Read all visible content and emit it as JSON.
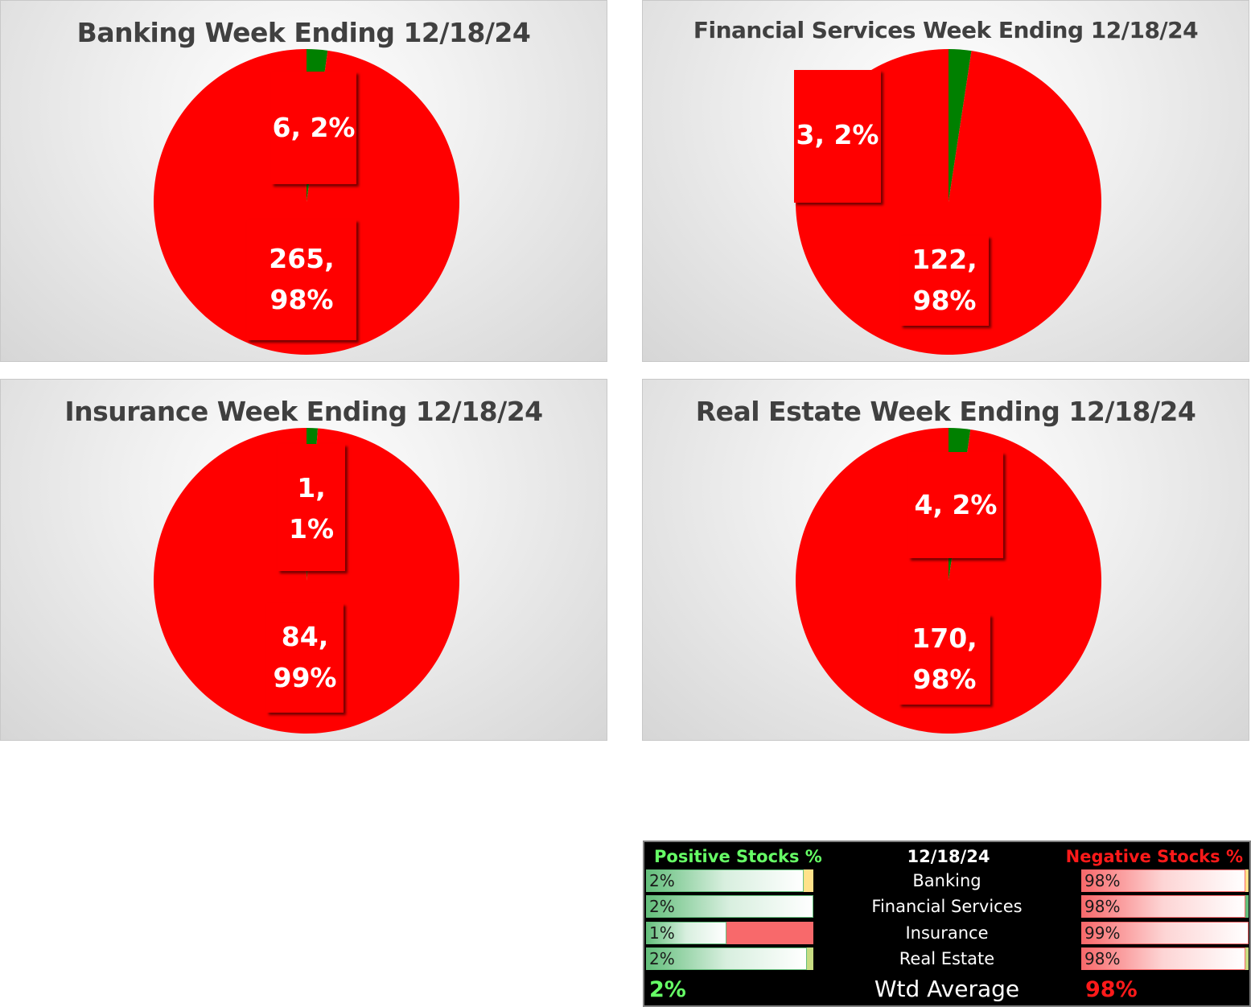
{
  "colors": {
    "positive": "#008000",
    "negative": "#ff0000",
    "label_bg": "#ff0000"
  },
  "chart_data": [
    {
      "type": "pie",
      "title": "Banking Week Ending 12/18/24",
      "slices": [
        {
          "name": "",
          "value": 6,
          "percent": "2%",
          "color": "#008000"
        },
        {
          "name": "",
          "value": 265,
          "percent": "98%",
          "color": "#ff0000"
        }
      ],
      "labels": [
        {
          "lines": [
            "6, 2%"
          ]
        },
        {
          "lines": [
            "265,",
            "98%"
          ]
        }
      ]
    },
    {
      "type": "pie",
      "title": "Financial Services Week Ending 12/18/24",
      "slices": [
        {
          "name": "",
          "value": 3,
          "percent": "2%",
          "color": "#008000"
        },
        {
          "name": "",
          "value": 122,
          "percent": "98%",
          "color": "#ff0000"
        }
      ],
      "labels": [
        {
          "lines": [
            "3, 2%"
          ]
        },
        {
          "lines": [
            "122,",
            "98%"
          ]
        }
      ]
    },
    {
      "type": "pie",
      "title": "Insurance Week Ending 12/18/24",
      "slices": [
        {
          "name": "",
          "value": 1,
          "percent": "1%",
          "color": "#008000"
        },
        {
          "name": "",
          "value": 84,
          "percent": "99%",
          "color": "#ff0000"
        }
      ],
      "labels": [
        {
          "lines": [
            "1,",
            "1%"
          ]
        },
        {
          "lines": [
            "84,",
            "99%"
          ]
        }
      ]
    },
    {
      "type": "pie",
      "title": "Real Estate Week Ending 12/18/24",
      "slices": [
        {
          "name": "",
          "value": 4,
          "percent": "2%",
          "color": "#008000"
        },
        {
          "name": "",
          "value": 170,
          "percent": "98%",
          "color": "#ff0000"
        }
      ],
      "labels": [
        {
          "lines": [
            "4, 2%"
          ]
        },
        {
          "lines": [
            "170,",
            "98%"
          ]
        }
      ]
    }
  ],
  "summary": {
    "positive_header": "Positive Stocks %",
    "date_header": "12/18/24",
    "negative_header": "Negative Stocks %",
    "rows": [
      {
        "label": "Banking",
        "positive": "2%",
        "positive_fill": 0.94,
        "negative": "98%",
        "negative_fill": 0.98
      },
      {
        "label": "Financial Services",
        "positive": "2%",
        "positive_fill": 1.0,
        "negative": "98%",
        "negative_fill": 0.98
      },
      {
        "label": "Insurance",
        "positive": "1%",
        "positive_fill": 0.48,
        "negative": "99%",
        "negative_fill": 1.0
      },
      {
        "label": "Real Estate",
        "positive": "2%",
        "positive_fill": 0.96,
        "negative": "98%",
        "negative_fill": 0.98
      }
    ],
    "wtd_label": "Wtd Average",
    "wtd_positive": "2%",
    "wtd_negative": "98%"
  }
}
